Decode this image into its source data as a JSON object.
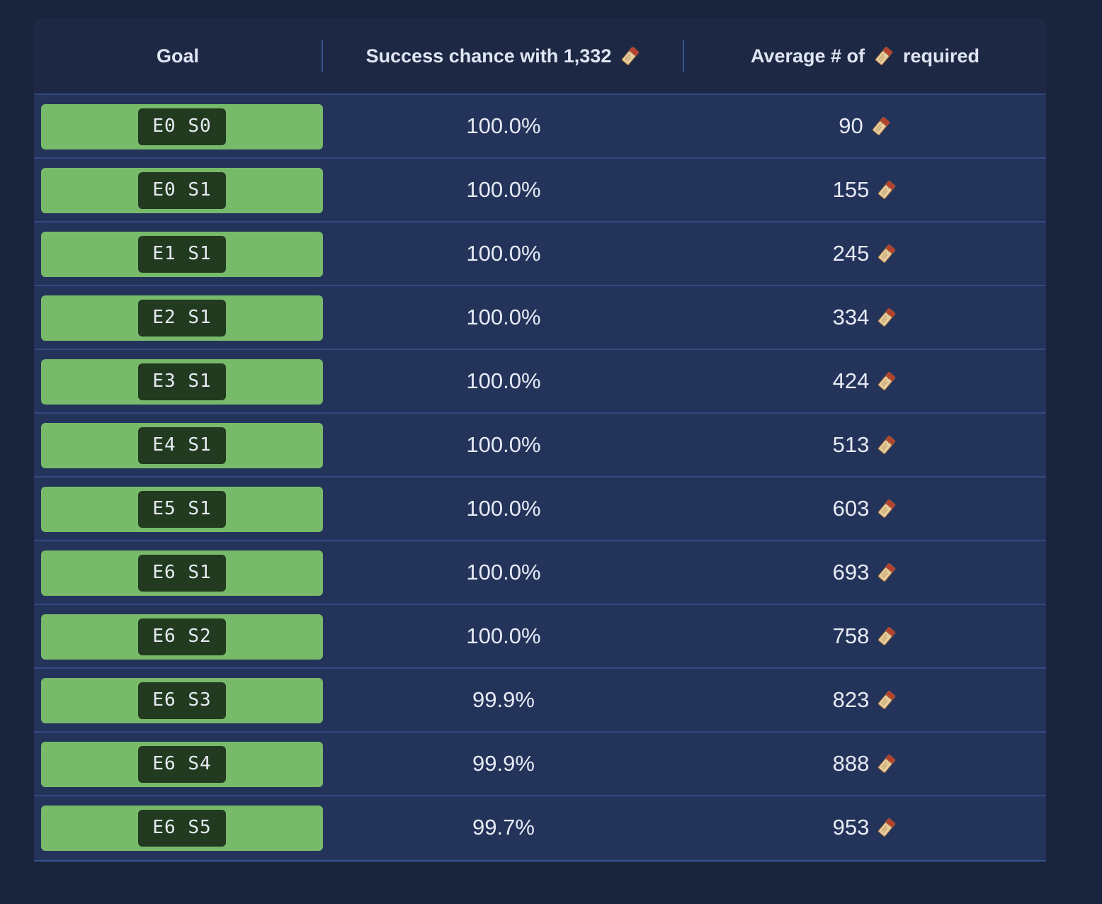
{
  "header": {
    "goal": "Goal",
    "chance_prefix": "Success chance with 1,332",
    "avg_prefix": "Average # of",
    "avg_suffix": "required"
  },
  "icons": {
    "currency": "pass-ticket-icon"
  },
  "colors": {
    "goal_fill": "#77ba6a",
    "goal_chip": "#223a1f"
  },
  "rows": [
    {
      "goal": "E0 S0",
      "chance": "100.0%",
      "avg": "90"
    },
    {
      "goal": "E0 S1",
      "chance": "100.0%",
      "avg": "155"
    },
    {
      "goal": "E1 S1",
      "chance": "100.0%",
      "avg": "245"
    },
    {
      "goal": "E2 S1",
      "chance": "100.0%",
      "avg": "334"
    },
    {
      "goal": "E3 S1",
      "chance": "100.0%",
      "avg": "424"
    },
    {
      "goal": "E4 S1",
      "chance": "100.0%",
      "avg": "513"
    },
    {
      "goal": "E5 S1",
      "chance": "100.0%",
      "avg": "603"
    },
    {
      "goal": "E6 S1",
      "chance": "100.0%",
      "avg": "693"
    },
    {
      "goal": "E6 S2",
      "chance": "100.0%",
      "avg": "758"
    },
    {
      "goal": "E6 S3",
      "chance": "99.9%",
      "avg": "823"
    },
    {
      "goal": "E6 S4",
      "chance": "99.9%",
      "avg": "888"
    },
    {
      "goal": "E6 S5",
      "chance": "99.7%",
      "avg": "953"
    }
  ]
}
